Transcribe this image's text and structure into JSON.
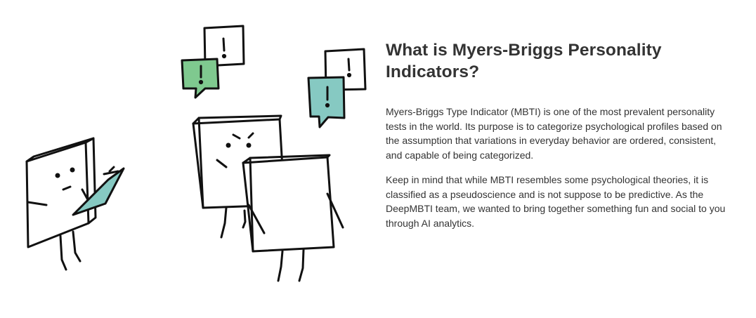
{
  "section": {
    "title": "What is Myers-Briggs Personality Indicators?",
    "paragraphs": [
      "Myers-Briggs Type Indicator (MBTI) is one of the most prevalent personality tests in the world. Its purpose is to categorize psychological profiles based on the assumption that variations in everyday behavior are ordered, consistent, and capable of being categorized.",
      "Keep in mind that while MBTI resembles some psychological theories, it is classified as a pseudoscience and is not suppose to be predictive. As the DeepMBTI team, we wanted to bring together something fun and social to you through AI analytics."
    ]
  },
  "illustration": {
    "icon": "box-characters-illustration",
    "colors": {
      "stroke": "#111111",
      "green": "#7fc98f",
      "teal": "#86c9c2"
    }
  }
}
